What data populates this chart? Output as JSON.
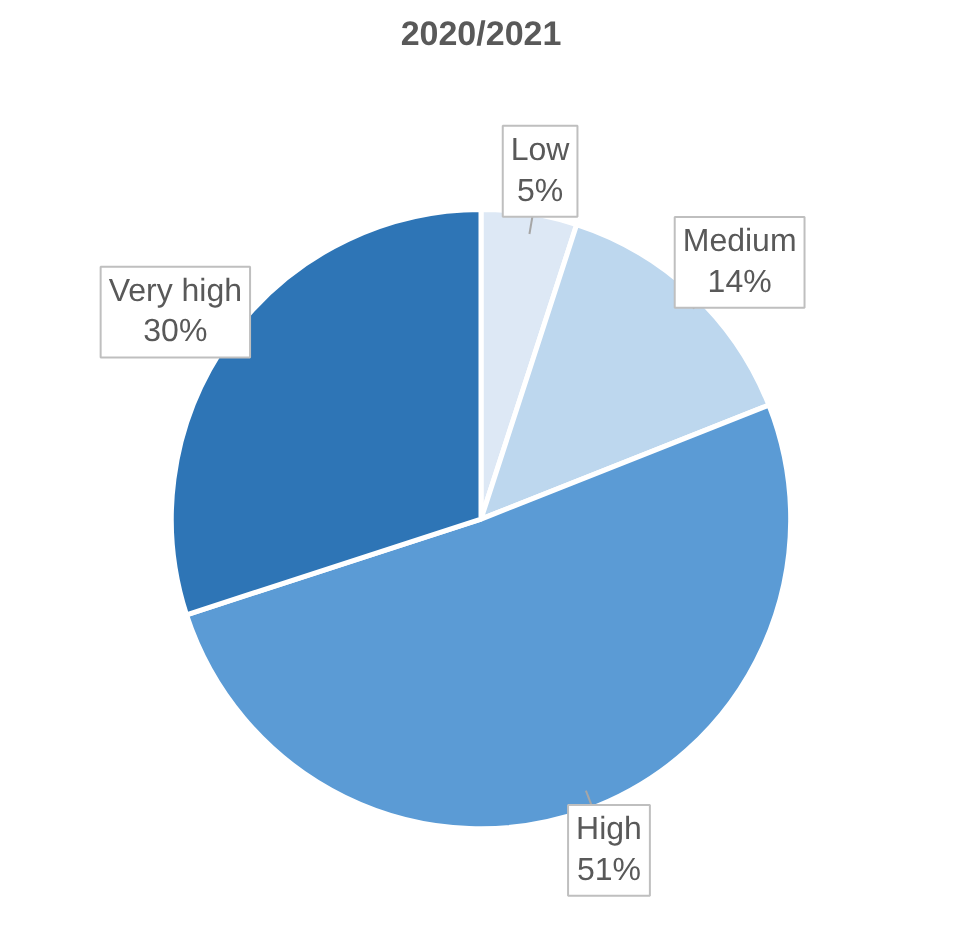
{
  "chart_data": {
    "type": "pie",
    "title": "2020/2021",
    "categories": [
      "Low",
      "Medium",
      "High",
      "Very high"
    ],
    "values": [
      5,
      14,
      51,
      30
    ],
    "value_labels": [
      "5%",
      "14%",
      "51%",
      "30%"
    ],
    "colors": [
      "#dde8f5",
      "#bdd7ee",
      "#5b9bd5",
      "#2e75b6"
    ],
    "legend": false
  }
}
